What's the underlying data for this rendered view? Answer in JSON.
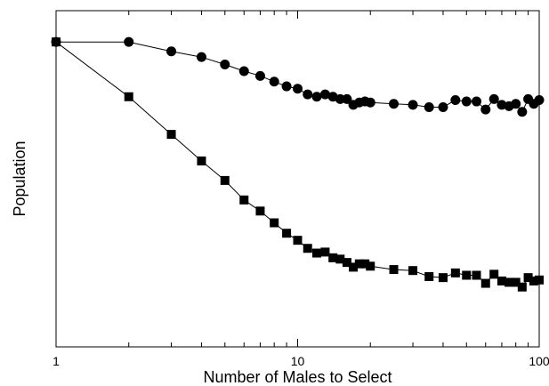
{
  "chart_data": {
    "type": "scatter",
    "xlabel": "Number of Males to Select",
    "ylabel": "Population",
    "x_scale": "log",
    "xlim": [
      1,
      100
    ],
    "x_tick_labels": [
      "1",
      "10",
      "100"
    ],
    "y_tick_labels": [],
    "ylim": [
      0,
      1
    ],
    "grid": false,
    "marker_color": "#000000",
    "series": [
      {
        "marker": "circle",
        "x": [
          1,
          2,
          3,
          4,
          5,
          6,
          7,
          8,
          9,
          10,
          11,
          12,
          13,
          14,
          15,
          16,
          17,
          18,
          19,
          20,
          25,
          30,
          35,
          40,
          45,
          50,
          55,
          60,
          65,
          70,
          75,
          80,
          85,
          90,
          95,
          100
        ],
        "y": [
          0.907,
          0.907,
          0.879,
          0.862,
          0.84,
          0.82,
          0.806,
          0.789,
          0.775,
          0.768,
          0.751,
          0.744,
          0.751,
          0.744,
          0.737,
          0.737,
          0.72,
          0.727,
          0.73,
          0.727,
          0.723,
          0.72,
          0.713,
          0.713,
          0.734,
          0.73,
          0.73,
          0.706,
          0.737,
          0.72,
          0.716,
          0.723,
          0.699,
          0.737,
          0.723,
          0.734
        ]
      },
      {
        "marker": "square",
        "x": [
          1,
          2,
          3,
          4,
          5,
          6,
          7,
          8,
          9,
          10,
          11,
          12,
          13,
          14,
          15,
          16,
          17,
          18,
          19,
          20,
          25,
          30,
          35,
          40,
          45,
          50,
          55,
          60,
          65,
          70,
          75,
          80,
          85,
          90,
          95,
          100
        ],
        "y": [
          0.907,
          0.744,
          0.632,
          0.553,
          0.495,
          0.437,
          0.404,
          0.369,
          0.338,
          0.317,
          0.293,
          0.279,
          0.282,
          0.265,
          0.261,
          0.251,
          0.237,
          0.247,
          0.247,
          0.24,
          0.23,
          0.227,
          0.209,
          0.206,
          0.22,
          0.213,
          0.213,
          0.189,
          0.216,
          0.196,
          0.192,
          0.192,
          0.178,
          0.206,
          0.196,
          0.199
        ]
      }
    ]
  }
}
